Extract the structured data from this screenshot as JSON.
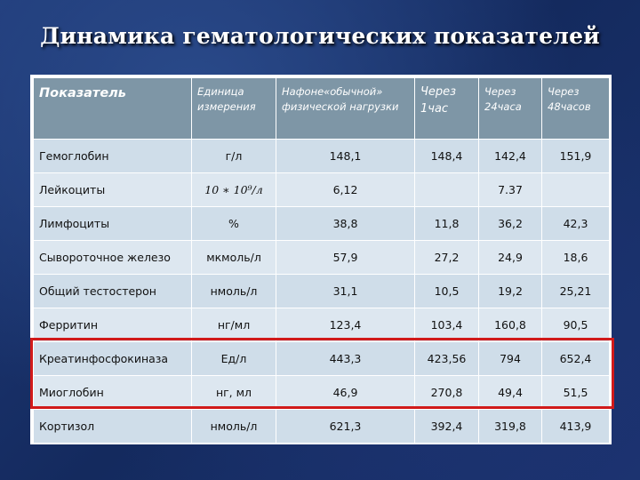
{
  "title": "Динамика гематологических показателей",
  "table": {
    "headers": [
      "Показатель",
      "Единица измерения",
      "Нафоне«обычной» физической нагрузки",
      "Через 1час",
      "Через 24часа",
      "Через 48часов"
    ],
    "rows": [
      [
        "Гемоглобин",
        "г/л",
        "148,1",
        "148,4",
        "142,4",
        "151,9"
      ],
      [
        "Лейкоциты",
        "10 ∗ 10⁹/л",
        "6,12",
        "",
        "7.37",
        ""
      ],
      [
        "Лимфоциты",
        "%",
        "38,8",
        "11,8",
        "36,2",
        "42,3"
      ],
      [
        "Сывороточное железо",
        "мкмоль/л",
        "57,9",
        "27,2",
        "24,9",
        "18,6"
      ],
      [
        "Общий тестостерон",
        "нмоль/л",
        "31,1",
        "10,5",
        "19,2",
        "25,21"
      ],
      [
        "Ферритин",
        "нг/мл",
        "123,4",
        "103,4",
        "160,8",
        "90,5"
      ],
      [
        "Креатинфосфокиназа",
        "Ед/л",
        "443,3",
        "423,56",
        "794",
        "652,4"
      ],
      [
        "Миоглобин",
        "нг, мл",
        "46,9",
        "270,8",
        "49,4",
        "51,5"
      ],
      [
        "Кортизол",
        "нмоль/л",
        "621,3",
        "392,4",
        "319,8",
        "413,9"
      ]
    ]
  },
  "highlight_color": "#d11a1a"
}
